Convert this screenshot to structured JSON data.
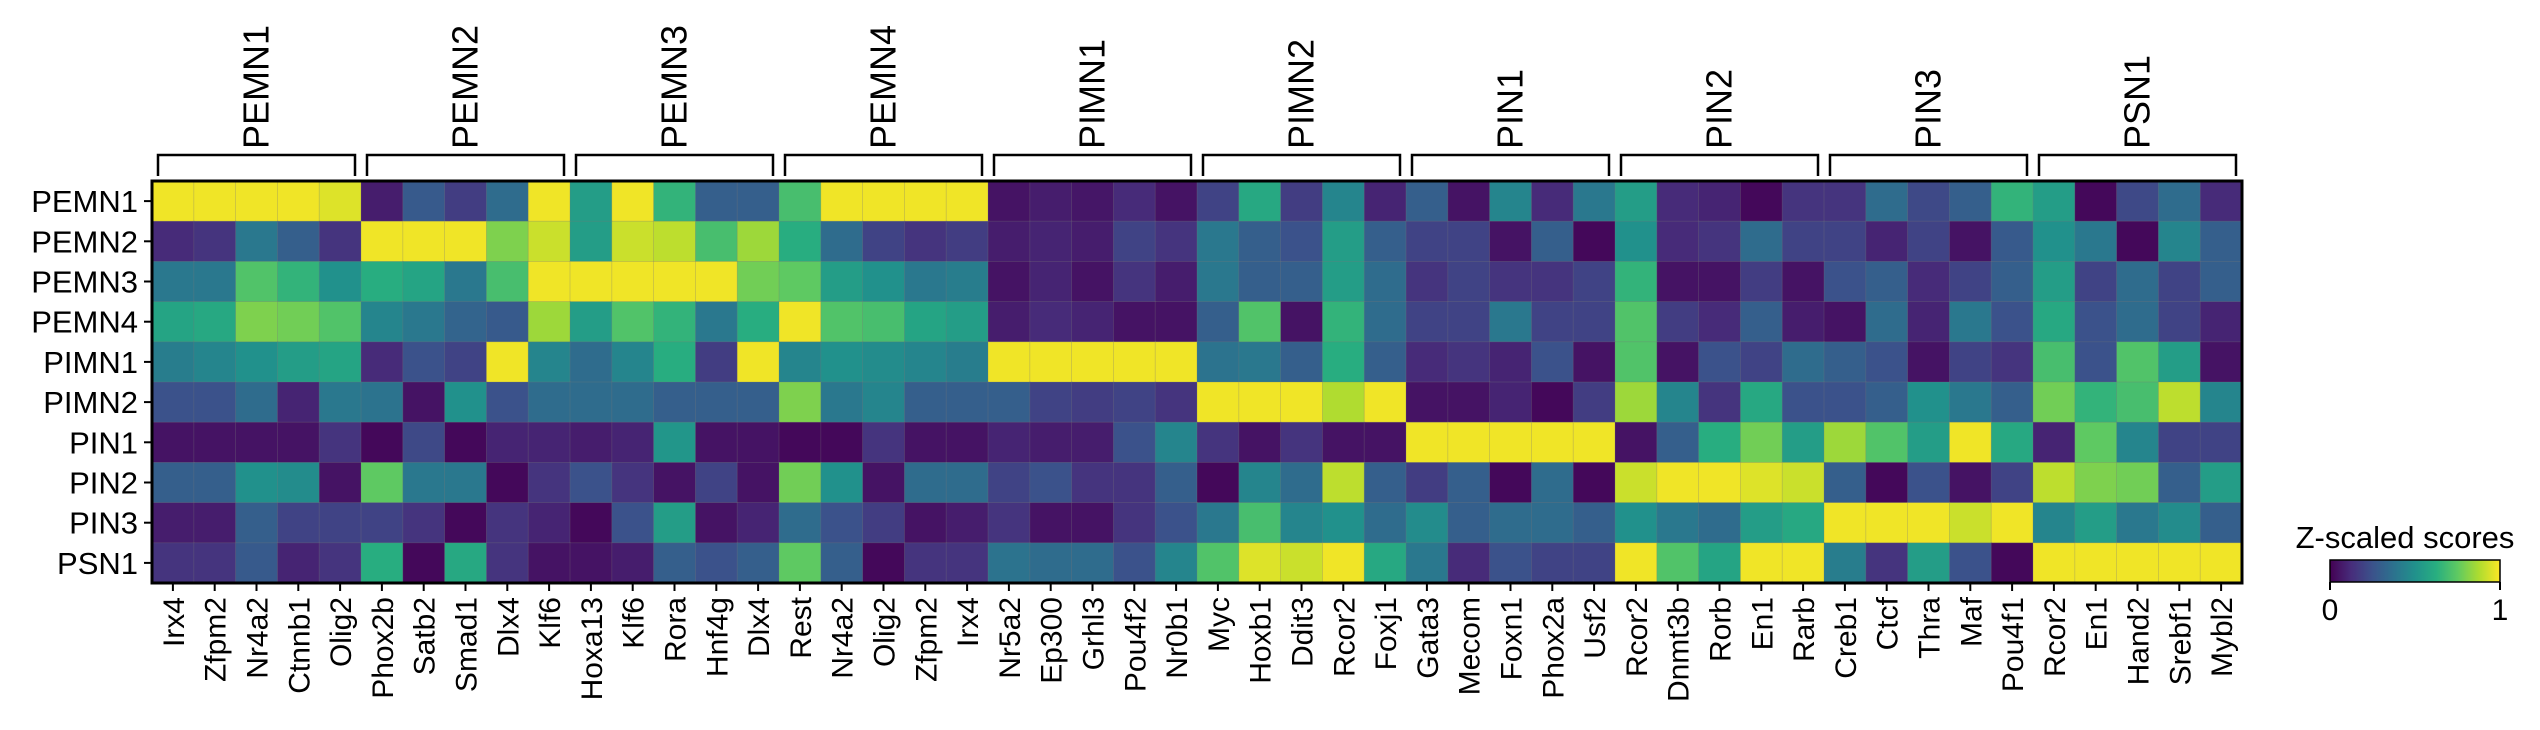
{
  "chart_data": {
    "type": "heatmap",
    "colormap": "viridis",
    "rows": [
      "PEMN1",
      "PEMN2",
      "PEMN3",
      "PEMN4",
      "PIMN1",
      "PIMN2",
      "PIN1",
      "PIN2",
      "PIN3",
      "PSN1"
    ],
    "columns": [
      "Irx4",
      "Zfpm2",
      "Nr4a2",
      "Ctnnb1",
      "Olig2",
      "Phox2b",
      "Satb2",
      "Smad1",
      "Dlx4",
      "Klf6",
      "Hoxa13",
      "Klf6",
      "Rora",
      "Hnf4g",
      "Dlx4",
      "Rest",
      "Nr4a2",
      "Olig2",
      "Zfpm2",
      "Irx4",
      "Nr5a2",
      "Ep300",
      "Grhl3",
      "Pou4f2",
      "Nr0b1",
      "Myc",
      "Hoxb1",
      "Ddit3",
      "Rcor2",
      "Foxj1",
      "Gata3",
      "Mecom",
      "Foxn1",
      "Phox2a",
      "Usf2",
      "Rcor2",
      "Dnmt3b",
      "Rorb",
      "En1",
      "Rarb",
      "Creb1",
      "Ctcf",
      "Thra",
      "Maf",
      "Pou4f1",
      "Rcor2",
      "En1",
      "Hand2",
      "Srebf1",
      "Mybl2"
    ],
    "groups": [
      {
        "label": "PEMN1",
        "start": 0,
        "end": 4
      },
      {
        "label": "PEMN2",
        "start": 5,
        "end": 9
      },
      {
        "label": "PEMN3",
        "start": 10,
        "end": 14
      },
      {
        "label": "PEMN4",
        "start": 15,
        "end": 19
      },
      {
        "label": "PIMN1",
        "start": 20,
        "end": 24
      },
      {
        "label": "PIMN2",
        "start": 25,
        "end": 29
      },
      {
        "label": "PIN1",
        "start": 30,
        "end": 34
      },
      {
        "label": "PIN2",
        "start": 35,
        "end": 39
      },
      {
        "label": "PIN3",
        "start": 40,
        "end": 44
      },
      {
        "label": "PSN1",
        "start": 45,
        "end": 49
      }
    ],
    "values": [
      [
        0.98,
        0.98,
        0.98,
        0.98,
        0.95,
        0.08,
        0.28,
        0.18,
        0.35,
        0.98,
        0.55,
        0.98,
        0.65,
        0.3,
        0.3,
        0.7,
        0.98,
        0.98,
        0.98,
        0.98,
        0.05,
        0.08,
        0.06,
        0.12,
        0.05,
        0.2,
        0.6,
        0.18,
        0.45,
        0.1,
        0.3,
        0.05,
        0.45,
        0.12,
        0.4,
        0.55,
        0.12,
        0.1,
        0.02,
        0.15,
        0.15,
        0.35,
        0.22,
        0.3,
        0.65,
        0.55,
        0.02,
        0.22,
        0.35,
        0.12
      ],
      [
        0.12,
        0.15,
        0.4,
        0.3,
        0.15,
        0.98,
        0.98,
        0.98,
        0.8,
        0.92,
        0.55,
        0.92,
        0.9,
        0.7,
        0.85,
        0.62,
        0.35,
        0.2,
        0.15,
        0.18,
        0.08,
        0.1,
        0.08,
        0.2,
        0.15,
        0.4,
        0.3,
        0.25,
        0.55,
        0.3,
        0.2,
        0.2,
        0.05,
        0.3,
        0.02,
        0.5,
        0.12,
        0.15,
        0.35,
        0.2,
        0.2,
        0.1,
        0.2,
        0.05,
        0.28,
        0.5,
        0.4,
        0.02,
        0.45,
        0.3
      ],
      [
        0.4,
        0.4,
        0.72,
        0.65,
        0.5,
        0.62,
        0.58,
        0.4,
        0.7,
        0.98,
        0.98,
        0.98,
        0.98,
        0.98,
        0.78,
        0.75,
        0.55,
        0.5,
        0.4,
        0.42,
        0.05,
        0.1,
        0.05,
        0.15,
        0.08,
        0.4,
        0.3,
        0.3,
        0.55,
        0.35,
        0.15,
        0.2,
        0.15,
        0.15,
        0.2,
        0.65,
        0.05,
        0.05,
        0.18,
        0.05,
        0.25,
        0.3,
        0.12,
        0.2,
        0.3,
        0.55,
        0.2,
        0.35,
        0.2,
        0.3
      ],
      [
        0.58,
        0.6,
        0.8,
        0.78,
        0.72,
        0.45,
        0.4,
        0.32,
        0.28,
        0.85,
        0.55,
        0.72,
        0.65,
        0.4,
        0.62,
        0.98,
        0.72,
        0.7,
        0.58,
        0.55,
        0.08,
        0.12,
        0.1,
        0.05,
        0.05,
        0.3,
        0.72,
        0.05,
        0.65,
        0.35,
        0.2,
        0.2,
        0.4,
        0.2,
        0.2,
        0.72,
        0.18,
        0.12,
        0.3,
        0.08,
        0.05,
        0.35,
        0.1,
        0.4,
        0.25,
        0.6,
        0.25,
        0.35,
        0.2,
        0.1
      ],
      [
        0.42,
        0.45,
        0.5,
        0.55,
        0.58,
        0.12,
        0.25,
        0.2,
        0.98,
        0.45,
        0.35,
        0.45,
        0.62,
        0.18,
        0.98,
        0.45,
        0.5,
        0.48,
        0.45,
        0.42,
        0.98,
        0.98,
        0.98,
        0.98,
        0.98,
        0.38,
        0.4,
        0.3,
        0.62,
        0.3,
        0.12,
        0.15,
        0.1,
        0.25,
        0.05,
        0.72,
        0.05,
        0.25,
        0.2,
        0.35,
        0.3,
        0.25,
        0.05,
        0.2,
        0.15,
        0.7,
        0.25,
        0.72,
        0.55,
        0.05
      ],
      [
        0.25,
        0.25,
        0.35,
        0.1,
        0.4,
        0.38,
        0.05,
        0.5,
        0.25,
        0.35,
        0.35,
        0.35,
        0.3,
        0.3,
        0.3,
        0.8,
        0.4,
        0.45,
        0.3,
        0.3,
        0.3,
        0.2,
        0.18,
        0.2,
        0.15,
        0.98,
        0.98,
        0.98,
        0.88,
        0.98,
        0.05,
        0.05,
        0.1,
        0.02,
        0.18,
        0.85,
        0.45,
        0.15,
        0.6,
        0.25,
        0.25,
        0.3,
        0.5,
        0.4,
        0.3,
        0.78,
        0.65,
        0.7,
        0.9,
        0.45
      ],
      [
        0.05,
        0.05,
        0.05,
        0.05,
        0.15,
        0.02,
        0.22,
        0.02,
        0.1,
        0.1,
        0.08,
        0.1,
        0.52,
        0.05,
        0.05,
        0.02,
        0.02,
        0.15,
        0.05,
        0.05,
        0.1,
        0.08,
        0.08,
        0.25,
        0.45,
        0.15,
        0.05,
        0.15,
        0.05,
        0.05,
        0.98,
        0.98,
        0.98,
        0.98,
        0.98,
        0.05,
        0.3,
        0.62,
        0.78,
        0.55,
        0.85,
        0.72,
        0.55,
        0.98,
        0.6,
        0.1,
        0.75,
        0.45,
        0.2,
        0.2
      ],
      [
        0.3,
        0.3,
        0.5,
        0.48,
        0.05,
        0.75,
        0.4,
        0.4,
        0.02,
        0.15,
        0.25,
        0.15,
        0.05,
        0.2,
        0.05,
        0.78,
        0.5,
        0.05,
        0.35,
        0.35,
        0.2,
        0.25,
        0.15,
        0.15,
        0.3,
        0.02,
        0.45,
        0.35,
        0.9,
        0.3,
        0.18,
        0.3,
        0.02,
        0.35,
        0.02,
        0.92,
        0.98,
        0.98,
        0.95,
        0.92,
        0.3,
        0.02,
        0.25,
        0.05,
        0.2,
        0.9,
        0.8,
        0.78,
        0.3,
        0.55
      ],
      [
        0.08,
        0.08,
        0.3,
        0.2,
        0.2,
        0.2,
        0.15,
        0.02,
        0.15,
        0.1,
        0.02,
        0.25,
        0.55,
        0.05,
        0.1,
        0.35,
        0.25,
        0.18,
        0.05,
        0.08,
        0.15,
        0.05,
        0.05,
        0.15,
        0.25,
        0.4,
        0.7,
        0.45,
        0.5,
        0.35,
        0.48,
        0.3,
        0.35,
        0.35,
        0.3,
        0.5,
        0.4,
        0.35,
        0.55,
        0.6,
        0.98,
        0.98,
        0.98,
        0.92,
        0.98,
        0.45,
        0.55,
        0.4,
        0.48,
        0.3
      ],
      [
        0.15,
        0.15,
        0.28,
        0.1,
        0.15,
        0.62,
        0.02,
        0.6,
        0.15,
        0.05,
        0.05,
        0.08,
        0.3,
        0.25,
        0.3,
        0.75,
        0.3,
        0.02,
        0.15,
        0.15,
        0.38,
        0.35,
        0.35,
        0.25,
        0.45,
        0.72,
        0.95,
        0.92,
        0.98,
        0.6,
        0.4,
        0.12,
        0.25,
        0.2,
        0.2,
        0.98,
        0.72,
        0.58,
        0.98,
        0.98,
        0.42,
        0.15,
        0.55,
        0.25,
        0.02,
        0.98,
        0.98,
        0.98,
        0.98,
        0.98
      ]
    ],
    "colorbar": {
      "title": "Z-scaled scores",
      "min_label": "0",
      "max_label": "1",
      "range": [
        0,
        1
      ]
    }
  }
}
